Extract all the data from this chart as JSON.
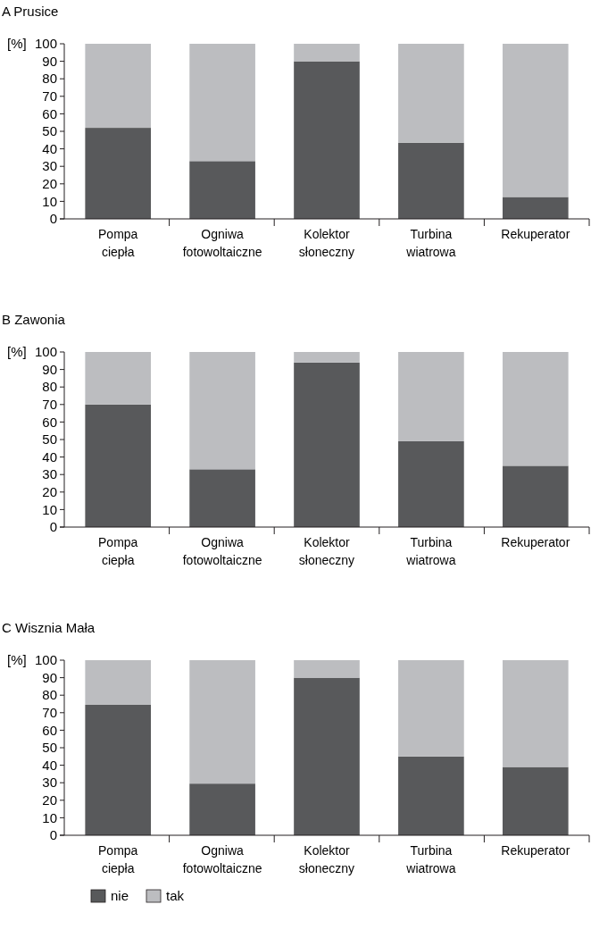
{
  "chart_data": [
    {
      "type": "bar",
      "title": "A Prusice",
      "ylabel": "[%]",
      "stacked": true,
      "categories": [
        "Pompa ciepła",
        "Ogniwa fotowoltaiczne",
        "Kolektor słoneczny",
        "Turbina wiatrowa",
        "Rekuperator"
      ],
      "ylim": [
        0,
        100
      ],
      "yticks": [
        0,
        10,
        20,
        30,
        40,
        50,
        60,
        70,
        80,
        90,
        100
      ],
      "legend": false,
      "series": [
        {
          "color": "#58595b",
          "values": [
            52,
            33,
            90,
            43.5,
            12.5
          ]
        },
        {
          "color": "#bcbdc0",
          "values": [
            48,
            67,
            10,
            56.5,
            87.5
          ]
        }
      ]
    },
    {
      "type": "bar",
      "title": "B Zawonia",
      "ylabel": "[%]",
      "stacked": true,
      "categories": [
        "Pompa ciepła",
        "Ogniwa fotowoltaiczne",
        "Kolektor słoneczny",
        "Turbina wiatrowa",
        "Rekuperator"
      ],
      "ylim": [
        0,
        100
      ],
      "yticks": [
        0,
        10,
        20,
        30,
        40,
        50,
        60,
        70,
        80,
        90,
        100
      ],
      "legend": false,
      "series": [
        {
          "color": "#58595b",
          "values": [
            70,
            33,
            94,
            49,
            35
          ]
        },
        {
          "color": "#bcbdc0",
          "values": [
            30,
            67,
            6,
            51,
            65
          ]
        }
      ]
    },
    {
      "type": "bar",
      "title": "C Wisznia Mała",
      "ylabel": "[%]",
      "stacked": true,
      "categories": [
        "Pompa ciepła",
        "Ogniwa fotowoltaiczne",
        "Kolektor słoneczny",
        "Turbina wiatrowa",
        "Rekuperator"
      ],
      "ylim": [
        0,
        100
      ],
      "yticks": [
        0,
        10,
        20,
        30,
        40,
        50,
        60,
        70,
        80,
        90,
        100
      ],
      "legend": "bottom",
      "series": [
        {
          "name": "nie",
          "color": "#58595b",
          "values": [
            74.5,
            29.5,
            90,
            45,
            39
          ]
        },
        {
          "name": "tak",
          "color": "#bcbdc0",
          "values": [
            25.5,
            70.5,
            10,
            55,
            61
          ]
        }
      ]
    }
  ]
}
